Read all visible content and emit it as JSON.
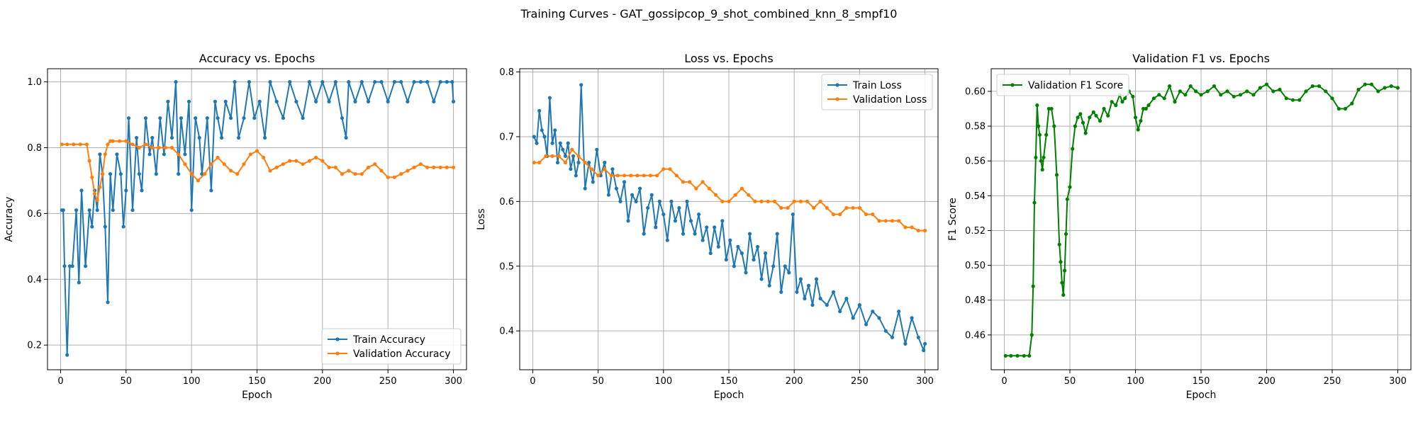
{
  "figure": {
    "suptitle": "Training Curves - GAT_gossipcop_9_shot_combined_knn_8_smpf10"
  },
  "chart_data": [
    {
      "type": "line",
      "title": "Accuracy vs. Epochs",
      "xlabel": "Epoch",
      "ylabel": "Accuracy",
      "xlim": [
        -10,
        310
      ],
      "ylim": [
        0.125,
        1.04
      ],
      "xticks": [
        0,
        50,
        100,
        150,
        200,
        250,
        300
      ],
      "yticks": [
        0.2,
        0.4,
        0.6,
        0.8,
        1.0
      ],
      "ytick_labels": [
        "0.2",
        "0.4",
        "0.6",
        "0.8",
        "1.0"
      ],
      "grid": true,
      "legend": "lower-right",
      "series": [
        {
          "name": "Train Accuracy",
          "color": "#1f77b4",
          "x": [
            1,
            2,
            3,
            5,
            7,
            9,
            12,
            14,
            16,
            19,
            22,
            24,
            26,
            28,
            30,
            32,
            34,
            36,
            38,
            40,
            43,
            46,
            48,
            50,
            52,
            55,
            58,
            60,
            62,
            65,
            68,
            70,
            73,
            76,
            79,
            82,
            85,
            88,
            90,
            92,
            95,
            98,
            100,
            103,
            106,
            108,
            112,
            115,
            118,
            120,
            123,
            126,
            130,
            133,
            136,
            140,
            144,
            148,
            152,
            156,
            160,
            165,
            170,
            175,
            180,
            185,
            190,
            195,
            200,
            205,
            210,
            215,
            218,
            220,
            225,
            230,
            235,
            240,
            245,
            250,
            255,
            260,
            265,
            270,
            275,
            280,
            285,
            290,
            295,
            299,
            300
          ],
          "y": [
            0.61,
            0.61,
            0.44,
            0.17,
            0.44,
            0.44,
            0.61,
            0.39,
            0.67,
            0.44,
            0.61,
            0.56,
            0.67,
            0.61,
            0.78,
            0.72,
            0.56,
            0.33,
            0.72,
            0.61,
            0.78,
            0.72,
            0.56,
            0.67,
            0.89,
            0.61,
            0.83,
            0.72,
            0.67,
            0.89,
            0.78,
            0.83,
            0.72,
            0.89,
            0.78,
            0.94,
            0.83,
            1.0,
            0.72,
            0.89,
            0.78,
            0.94,
            0.61,
            0.89,
            0.83,
            0.72,
            0.89,
            0.67,
            0.94,
            0.89,
            0.83,
            0.94,
            0.89,
            1.0,
            0.83,
            0.89,
            1.0,
            0.89,
            0.94,
            0.83,
            1.0,
            0.94,
            0.89,
            1.0,
            0.94,
            0.89,
            1.0,
            0.94,
            1.0,
            0.94,
            1.0,
            0.89,
            0.83,
            1.0,
            0.94,
            1.0,
            0.94,
            1.0,
            1.0,
            0.94,
            1.0,
            1.0,
            0.94,
            1.0,
            1.0,
            1.0,
            0.94,
            1.0,
            1.0,
            1.0,
            0.94
          ]
        },
        {
          "name": "Validation Accuracy",
          "color": "#ff7f0e",
          "x": [
            1,
            5,
            10,
            15,
            20,
            22,
            24,
            26,
            28,
            30,
            32,
            34,
            36,
            38,
            40,
            45,
            50,
            55,
            60,
            65,
            70,
            75,
            80,
            85,
            90,
            95,
            100,
            105,
            110,
            115,
            120,
            125,
            130,
            135,
            140,
            145,
            150,
            155,
            160,
            165,
            170,
            175,
            180,
            185,
            190,
            195,
            200,
            205,
            210,
            215,
            220,
            225,
            230,
            235,
            240,
            245,
            250,
            255,
            260,
            265,
            270,
            275,
            280,
            285,
            290,
            295,
            300
          ],
          "y": [
            0.81,
            0.81,
            0.81,
            0.81,
            0.81,
            0.76,
            0.71,
            0.66,
            0.64,
            0.68,
            0.72,
            0.78,
            0.81,
            0.82,
            0.82,
            0.82,
            0.82,
            0.81,
            0.8,
            0.81,
            0.8,
            0.8,
            0.8,
            0.8,
            0.78,
            0.75,
            0.72,
            0.7,
            0.72,
            0.75,
            0.77,
            0.75,
            0.73,
            0.72,
            0.75,
            0.78,
            0.79,
            0.77,
            0.73,
            0.74,
            0.75,
            0.76,
            0.76,
            0.75,
            0.76,
            0.77,
            0.76,
            0.74,
            0.74,
            0.72,
            0.73,
            0.72,
            0.72,
            0.74,
            0.75,
            0.73,
            0.71,
            0.71,
            0.72,
            0.73,
            0.74,
            0.75,
            0.74,
            0.74,
            0.74,
            0.74,
            0.74
          ]
        }
      ]
    },
    {
      "type": "line",
      "title": "Loss vs. Epochs",
      "xlabel": "Epoch",
      "ylabel": "Loss",
      "xlim": [
        -10,
        310
      ],
      "ylim": [
        0.34,
        0.805
      ],
      "xticks": [
        0,
        50,
        100,
        150,
        200,
        250,
        300
      ],
      "yticks": [
        0.4,
        0.5,
        0.6,
        0.7,
        0.8
      ],
      "ytick_labels": [
        "0.4",
        "0.5",
        "0.6",
        "0.7",
        "0.8"
      ],
      "grid": true,
      "legend": "upper-right",
      "series": [
        {
          "name": "Train Loss",
          "color": "#1f77b4",
          "x": [
            1,
            3,
            5,
            7,
            9,
            11,
            13,
            15,
            17,
            19,
            21,
            23,
            25,
            27,
            29,
            31,
            33,
            35,
            37,
            40,
            43,
            46,
            49,
            52,
            55,
            58,
            61,
            64,
            67,
            70,
            73,
            76,
            79,
            82,
            85,
            88,
            91,
            94,
            97,
            100,
            103,
            106,
            109,
            112,
            115,
            118,
            121,
            124,
            127,
            130,
            133,
            136,
            139,
            142,
            145,
            148,
            151,
            154,
            157,
            160,
            163,
            166,
            169,
            172,
            175,
            178,
            181,
            184,
            187,
            190,
            193,
            196,
            199,
            202,
            205,
            208,
            211,
            214,
            217,
            220,
            225,
            230,
            235,
            240,
            245,
            250,
            255,
            260,
            265,
            270,
            275,
            280,
            285,
            290,
            295,
            299,
            300
          ],
          "y": [
            0.7,
            0.69,
            0.74,
            0.71,
            0.7,
            0.67,
            0.76,
            0.69,
            0.71,
            0.66,
            0.69,
            0.68,
            0.67,
            0.69,
            0.65,
            0.67,
            0.64,
            0.66,
            0.78,
            0.62,
            0.66,
            0.63,
            0.68,
            0.64,
            0.66,
            0.61,
            0.65,
            0.62,
            0.6,
            0.63,
            0.57,
            0.61,
            0.6,
            0.62,
            0.55,
            0.59,
            0.61,
            0.56,
            0.6,
            0.58,
            0.54,
            0.6,
            0.57,
            0.59,
            0.55,
            0.6,
            0.57,
            0.55,
            0.58,
            0.54,
            0.56,
            0.52,
            0.56,
            0.53,
            0.57,
            0.51,
            0.54,
            0.5,
            0.53,
            0.52,
            0.49,
            0.55,
            0.51,
            0.53,
            0.48,
            0.52,
            0.47,
            0.5,
            0.55,
            0.46,
            0.5,
            0.49,
            0.58,
            0.46,
            0.48,
            0.45,
            0.47,
            0.44,
            0.48,
            0.45,
            0.44,
            0.46,
            0.43,
            0.45,
            0.42,
            0.44,
            0.41,
            0.43,
            0.42,
            0.4,
            0.39,
            0.43,
            0.38,
            0.42,
            0.39,
            0.37,
            0.38
          ]
        },
        {
          "name": "Validation Loss",
          "color": "#ff7f0e",
          "x": [
            1,
            5,
            10,
            15,
            20,
            25,
            30,
            35,
            40,
            45,
            50,
            55,
            60,
            65,
            70,
            75,
            80,
            85,
            90,
            95,
            100,
            105,
            110,
            115,
            120,
            125,
            130,
            135,
            140,
            145,
            150,
            155,
            160,
            165,
            170,
            175,
            180,
            185,
            190,
            195,
            200,
            205,
            210,
            215,
            220,
            225,
            230,
            235,
            240,
            245,
            250,
            255,
            260,
            265,
            270,
            275,
            280,
            285,
            290,
            295,
            300
          ],
          "y": [
            0.66,
            0.66,
            0.67,
            0.67,
            0.67,
            0.66,
            0.68,
            0.67,
            0.66,
            0.65,
            0.64,
            0.65,
            0.64,
            0.64,
            0.64,
            0.64,
            0.64,
            0.64,
            0.64,
            0.64,
            0.65,
            0.65,
            0.64,
            0.63,
            0.63,
            0.62,
            0.63,
            0.62,
            0.61,
            0.6,
            0.6,
            0.61,
            0.62,
            0.61,
            0.6,
            0.6,
            0.6,
            0.6,
            0.59,
            0.59,
            0.6,
            0.6,
            0.6,
            0.59,
            0.6,
            0.59,
            0.58,
            0.58,
            0.59,
            0.59,
            0.59,
            0.58,
            0.58,
            0.57,
            0.57,
            0.57,
            0.57,
            0.56,
            0.56,
            0.555,
            0.555
          ]
        }
      ]
    },
    {
      "type": "line",
      "title": "Validation F1 vs. Epochs",
      "xlabel": "Epoch",
      "ylabel": "F1 Score",
      "xlim": [
        -10,
        310
      ],
      "ylim": [
        0.44,
        0.613
      ],
      "xticks": [
        0,
        50,
        100,
        150,
        200,
        250,
        300
      ],
      "yticks": [
        0.46,
        0.48,
        0.5,
        0.52,
        0.54,
        0.56,
        0.58,
        0.6
      ],
      "ytick_labels": [
        "0.46",
        "0.48",
        "0.50",
        "0.52",
        "0.54",
        "0.56",
        "0.58",
        "0.60"
      ],
      "grid": true,
      "legend": "upper-left",
      "series": [
        {
          "name": "Validation F1 Score",
          "color": "#008000",
          "x": [
            1,
            5,
            10,
            15,
            19,
            21,
            22,
            23,
            24,
            25,
            26,
            27,
            28,
            29,
            30,
            32,
            34,
            36,
            38,
            40,
            42,
            43,
            44,
            45,
            46,
            47,
            48,
            50,
            52,
            54,
            56,
            58,
            60,
            62,
            65,
            68,
            70,
            73,
            76,
            79,
            82,
            85,
            88,
            90,
            92,
            95,
            98,
            100,
            102,
            104,
            106,
            108,
            110,
            114,
            118,
            122,
            126,
            130,
            134,
            138,
            142,
            146,
            150,
            155,
            160,
            165,
            170,
            175,
            180,
            185,
            190,
            195,
            200,
            205,
            210,
            215,
            220,
            225,
            230,
            235,
            240,
            245,
            250,
            255,
            260,
            265,
            270,
            275,
            280,
            285,
            290,
            295,
            300
          ],
          "y": [
            0.448,
            0.448,
            0.448,
            0.448,
            0.448,
            0.46,
            0.488,
            0.536,
            0.562,
            0.592,
            0.58,
            0.575,
            0.56,
            0.555,
            0.562,
            0.575,
            0.59,
            0.59,
            0.58,
            0.552,
            0.512,
            0.502,
            0.49,
            0.483,
            0.497,
            0.518,
            0.538,
            0.545,
            0.567,
            0.58,
            0.585,
            0.587,
            0.582,
            0.576,
            0.585,
            0.588,
            0.586,
            0.583,
            0.59,
            0.586,
            0.594,
            0.592,
            0.598,
            0.594,
            0.596,
            0.6,
            0.597,
            0.585,
            0.578,
            0.583,
            0.59,
            0.59,
            0.592,
            0.596,
            0.598,
            0.596,
            0.603,
            0.594,
            0.6,
            0.598,
            0.603,
            0.6,
            0.598,
            0.6,
            0.603,
            0.598,
            0.6,
            0.597,
            0.598,
            0.6,
            0.598,
            0.602,
            0.604,
            0.6,
            0.601,
            0.596,
            0.595,
            0.595,
            0.6,
            0.603,
            0.603,
            0.6,
            0.596,
            0.59,
            0.59,
            0.593,
            0.601,
            0.604,
            0.604,
            0.6,
            0.602,
            0.603,
            0.602
          ]
        }
      ]
    }
  ]
}
